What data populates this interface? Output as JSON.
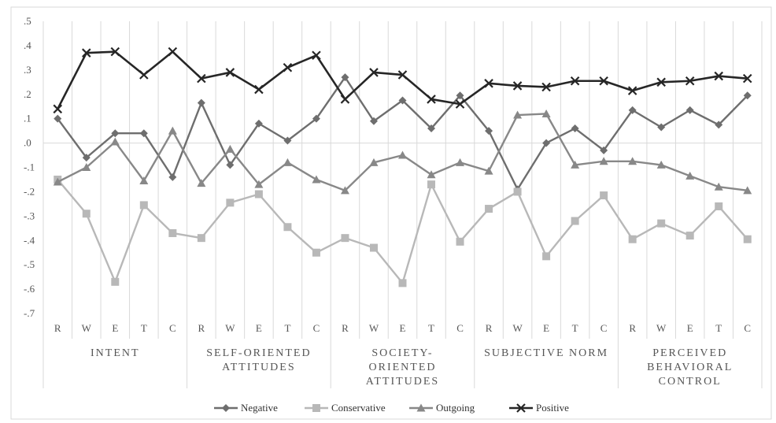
{
  "chart_data": {
    "type": "line",
    "y_ticks": [
      ".5",
      ".4",
      ".3",
      ".2",
      ".1",
      ".0",
      "-.1",
      "-.2",
      "-.3",
      "-.4",
      "-.5",
      "-.6",
      "-.7"
    ],
    "ylim": [
      -0.7,
      0.5
    ],
    "categories": [
      "R",
      "W",
      "E",
      "T",
      "C",
      "R",
      "W",
      "E",
      "T",
      "C",
      "R",
      "W",
      "E",
      "T",
      "C",
      "R",
      "W",
      "E",
      "T",
      "C",
      "R",
      "W",
      "E",
      "T",
      "C"
    ],
    "groups": [
      {
        "lines": [
          "INTENT"
        ]
      },
      {
        "lines": [
          "SELF-ORIENTED",
          "ATTITUDES"
        ]
      },
      {
        "lines": [
          "SOCIETY-",
          "ORIENTED",
          "ATTITUDES"
        ]
      },
      {
        "lines": [
          "SUBJECTIVE NORM"
        ]
      },
      {
        "lines": [
          "PERCEIVED",
          "BEHAVIORAL",
          "CONTROL"
        ]
      }
    ],
    "series": [
      {
        "name": "Negative",
        "color": "#6e6e6e",
        "marker": "diamond",
        "values": [
          0.1,
          -0.06,
          0.04,
          0.04,
          -0.14,
          0.165,
          -0.09,
          0.08,
          0.01,
          0.1,
          0.27,
          0.09,
          0.175,
          0.06,
          0.195,
          0.05,
          -0.19,
          0.0,
          0.06,
          -0.03,
          0.135,
          0.065,
          0.135,
          0.075,
          0.195
        ]
      },
      {
        "name": "Conservative",
        "color": "#b8b8b8",
        "marker": "square",
        "values": [
          -0.15,
          -0.29,
          -0.57,
          -0.255,
          -0.37,
          -0.39,
          -0.245,
          -0.21,
          -0.345,
          -0.45,
          -0.39,
          -0.43,
          -0.575,
          -0.17,
          -0.405,
          -0.27,
          -0.2,
          -0.465,
          -0.32,
          -0.215,
          -0.395,
          -0.33,
          -0.38,
          -0.26,
          -0.395
        ]
      },
      {
        "name": "Outgoing",
        "color": "#888888",
        "marker": "triangle",
        "values": [
          -0.16,
          -0.1,
          0.005,
          -0.155,
          0.05,
          -0.165,
          -0.025,
          -0.17,
          -0.08,
          -0.15,
          -0.195,
          -0.08,
          -0.05,
          -0.13,
          -0.08,
          -0.115,
          0.115,
          0.12,
          -0.09,
          -0.075,
          -0.075,
          -0.09,
          -0.135,
          -0.18,
          -0.195
        ]
      },
      {
        "name": "Positive",
        "color": "#262626",
        "marker": "x",
        "values": [
          0.14,
          0.37,
          0.375,
          0.28,
          0.375,
          0.265,
          0.29,
          0.22,
          0.31,
          0.36,
          0.18,
          0.29,
          0.28,
          0.18,
          0.16,
          0.245,
          0.235,
          0.23,
          0.255,
          0.255,
          0.215,
          0.25,
          0.255,
          0.275,
          0.265
        ]
      }
    ],
    "legend_position": "bottom",
    "grid": true
  }
}
